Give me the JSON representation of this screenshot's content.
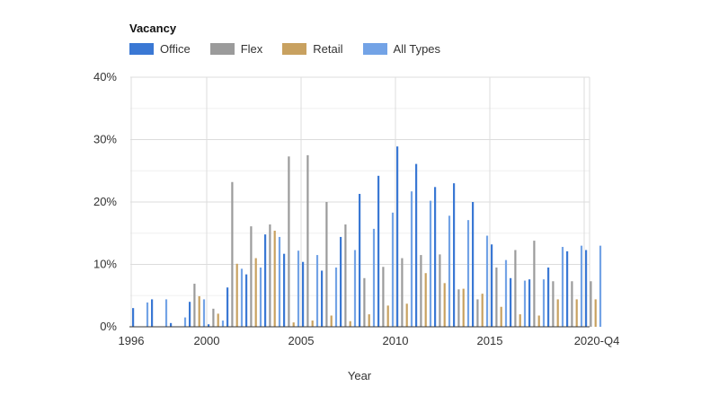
{
  "chart_data": {
    "type": "bar",
    "title": "Vacancy",
    "xlabel": "Year",
    "ylabel": "",
    "ylim": [
      0,
      40
    ],
    "yticks": [
      "0%",
      "10%",
      "20%",
      "30%",
      "40%"
    ],
    "xtick_labels": [
      "1996",
      "2000",
      "2005",
      "2010",
      "2015",
      "2020-Q4"
    ],
    "grid": true,
    "legend_position": "top-left",
    "categories": [
      "1996",
      "1997",
      "1998",
      "1999",
      "2000",
      "2001",
      "2002",
      "2003",
      "2004",
      "2005",
      "2006",
      "2007",
      "2008",
      "2009",
      "2010",
      "2011",
      "2012",
      "2013",
      "2014",
      "2015",
      "2016",
      "2017",
      "2018",
      "2019",
      "2020-Q4"
    ],
    "series": [
      {
        "name": "Office",
        "color": "#3a78d4",
        "values": [
          3.0,
          4.4,
          0.6,
          4.0,
          0.4,
          6.3,
          8.4,
          14.8,
          11.7,
          10.4,
          9.0,
          14.4,
          21.3,
          24.2,
          28.9,
          26.1,
          22.4,
          23.0,
          20.0,
          13.2,
          7.8,
          7.6,
          9.5,
          12.1,
          12.3
        ]
      },
      {
        "name": "Flex",
        "color": "#9b9b9b",
        "values": [
          0,
          0,
          0,
          6.9,
          2.9,
          23.2,
          16.1,
          16.4,
          27.3,
          27.5,
          20.0,
          16.4,
          7.8,
          9.6,
          11.0,
          11.5,
          11.6,
          6.0,
          4.4,
          9.5,
          12.3,
          13.8,
          7.3,
          7.3,
          7.3
        ]
      },
      {
        "name": "Retail",
        "color": "#c8a160",
        "values": [
          0,
          0,
          0,
          4.9,
          2.1,
          10.1,
          11.0,
          15.4,
          0.7,
          1.0,
          1.8,
          0.9,
          2.0,
          3.4,
          3.7,
          8.6,
          7.0,
          6.1,
          5.3,
          3.2,
          2.0,
          1.8,
          4.4,
          4.4,
          4.4
        ]
      },
      {
        "name": "All Types",
        "color": "#73a3e6",
        "values": [
          3.9,
          4.4,
          1.5,
          4.4,
          1.0,
          9.3,
          9.5,
          14.4,
          12.2,
          11.5,
          9.5,
          12.3,
          15.7,
          18.3,
          21.7,
          20.2,
          17.8,
          17.1,
          14.6,
          10.7,
          7.4,
          7.6,
          12.8,
          13.0,
          13.0
        ]
      }
    ]
  }
}
